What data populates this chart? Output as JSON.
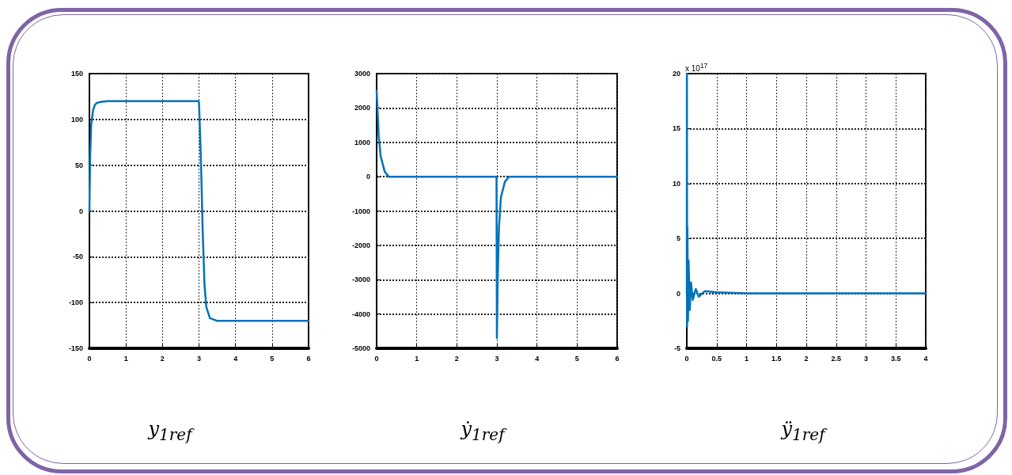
{
  "chart_data": [
    {
      "type": "line",
      "xlabel": "y$_{1ref}$",
      "grid": true,
      "xlim": [
        0,
        6
      ],
      "ylim": [
        -150,
        150
      ],
      "xticks": [
        0,
        1,
        2,
        3,
        4,
        5,
        6
      ],
      "yticks": [
        -150,
        -100,
        -50,
        0,
        50,
        100,
        150
      ],
      "series": [
        {
          "color": "#0072bd",
          "x": [
            0,
            0.02,
            0.05,
            0.1,
            0.15,
            0.2,
            0.3,
            0.5,
            1,
            2,
            2.99,
            3.0,
            3.05,
            3.1,
            3.15,
            3.2,
            3.3,
            3.5,
            4,
            5,
            6
          ],
          "values": [
            0,
            60,
            95,
            110,
            116,
            118,
            119,
            120,
            120,
            120,
            120,
            118,
            60,
            -20,
            -80,
            -105,
            -117,
            -120,
            -120,
            -120,
            -120
          ]
        }
      ]
    },
    {
      "type": "line",
      "xlabel": "ẏ$_{1ref}$",
      "grid": true,
      "xlim": [
        0,
        6
      ],
      "ylim": [
        -5000,
        3000
      ],
      "xticks": [
        0,
        1,
        2,
        3,
        4,
        5,
        6
      ],
      "yticks": [
        -5000,
        -4000,
        -3000,
        -2000,
        -1000,
        0,
        1000,
        2000,
        3000
      ],
      "series": [
        {
          "color": "#0072bd",
          "x": [
            0,
            0.02,
            0.05,
            0.1,
            0.2,
            0.3,
            1,
            2,
            2.99,
            3.0,
            3.02,
            3.05,
            3.1,
            3.2,
            3.3,
            6
          ],
          "values": [
            2500,
            2000,
            1200,
            600,
            150,
            0,
            0,
            0,
            0,
            -4700,
            -3000,
            -1500,
            -600,
            -150,
            0,
            0
          ]
        }
      ]
    },
    {
      "type": "line",
      "xlabel": "ÿ$_{1ref}$",
      "grid": true,
      "xlim": [
        0,
        4
      ],
      "ylim": [
        -5,
        20
      ],
      "xticks": [
        0,
        0.5,
        1,
        1.5,
        2,
        2.5,
        3,
        3.5,
        4
      ],
      "yticks": [
        -5,
        0,
        5,
        10,
        15,
        20
      ],
      "annotations": [
        "x 10$^{17}$"
      ],
      "series": [
        {
          "color": "#0072bd",
          "x": [
            0,
            0.002,
            0.005,
            0.01,
            0.02,
            0.03,
            0.05,
            0.07,
            0.1,
            0.15,
            0.2,
            0.3,
            0.5,
            1,
            4
          ],
          "values": [
            0,
            20,
            -3,
            6,
            -2.5,
            3,
            -1.5,
            1,
            -0.6,
            0.4,
            -0.3,
            0.2,
            0.1,
            0,
            0
          ]
        }
      ]
    }
  ]
}
